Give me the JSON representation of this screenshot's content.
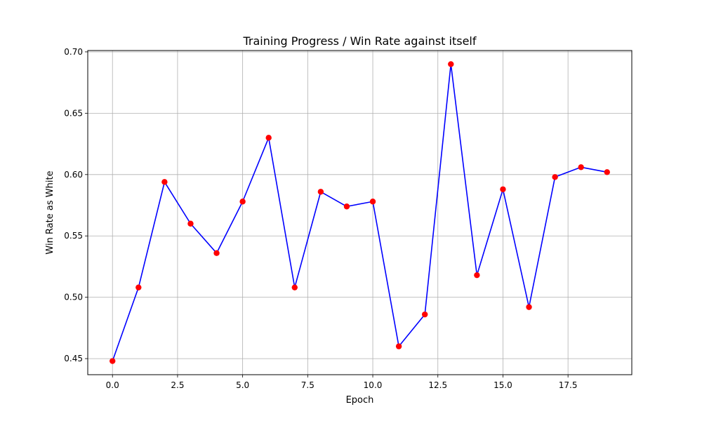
{
  "chart_data": {
    "type": "line",
    "title": "Training Progress / Win Rate against itself",
    "xlabel": "Epoch",
    "ylabel": "Win Rate as White",
    "xlim": [
      -0.95,
      19.95
    ],
    "ylim": [
      0.4369,
      0.7011
    ],
    "xticks": [
      0.0,
      2.5,
      5.0,
      7.5,
      10.0,
      12.5,
      15.0,
      17.5
    ],
    "xtick_labels": [
      "0.0",
      "2.5",
      "5.0",
      "7.5",
      "10.0",
      "12.5",
      "15.0",
      "17.5"
    ],
    "yticks": [
      0.45,
      0.5,
      0.55,
      0.6,
      0.65,
      0.7
    ],
    "ytick_labels": [
      "0.45",
      "0.50",
      "0.55",
      "0.60",
      "0.65",
      "0.70"
    ],
    "grid": true,
    "series": [
      {
        "x": [
          0,
          1,
          2,
          3,
          4,
          5,
          6,
          7,
          8,
          9,
          10,
          11,
          12,
          13,
          14,
          15,
          16,
          17,
          18,
          19
        ],
        "y": [
          0.448,
          0.508,
          0.594,
          0.56,
          0.536,
          0.578,
          0.63,
          0.508,
          0.586,
          0.574,
          0.578,
          0.46,
          0.486,
          0.69,
          0.518,
          0.588,
          0.492,
          0.598,
          0.606,
          0.602
        ],
        "line_color": "#0000ff",
        "marker_color": "#ff0000"
      }
    ]
  }
}
